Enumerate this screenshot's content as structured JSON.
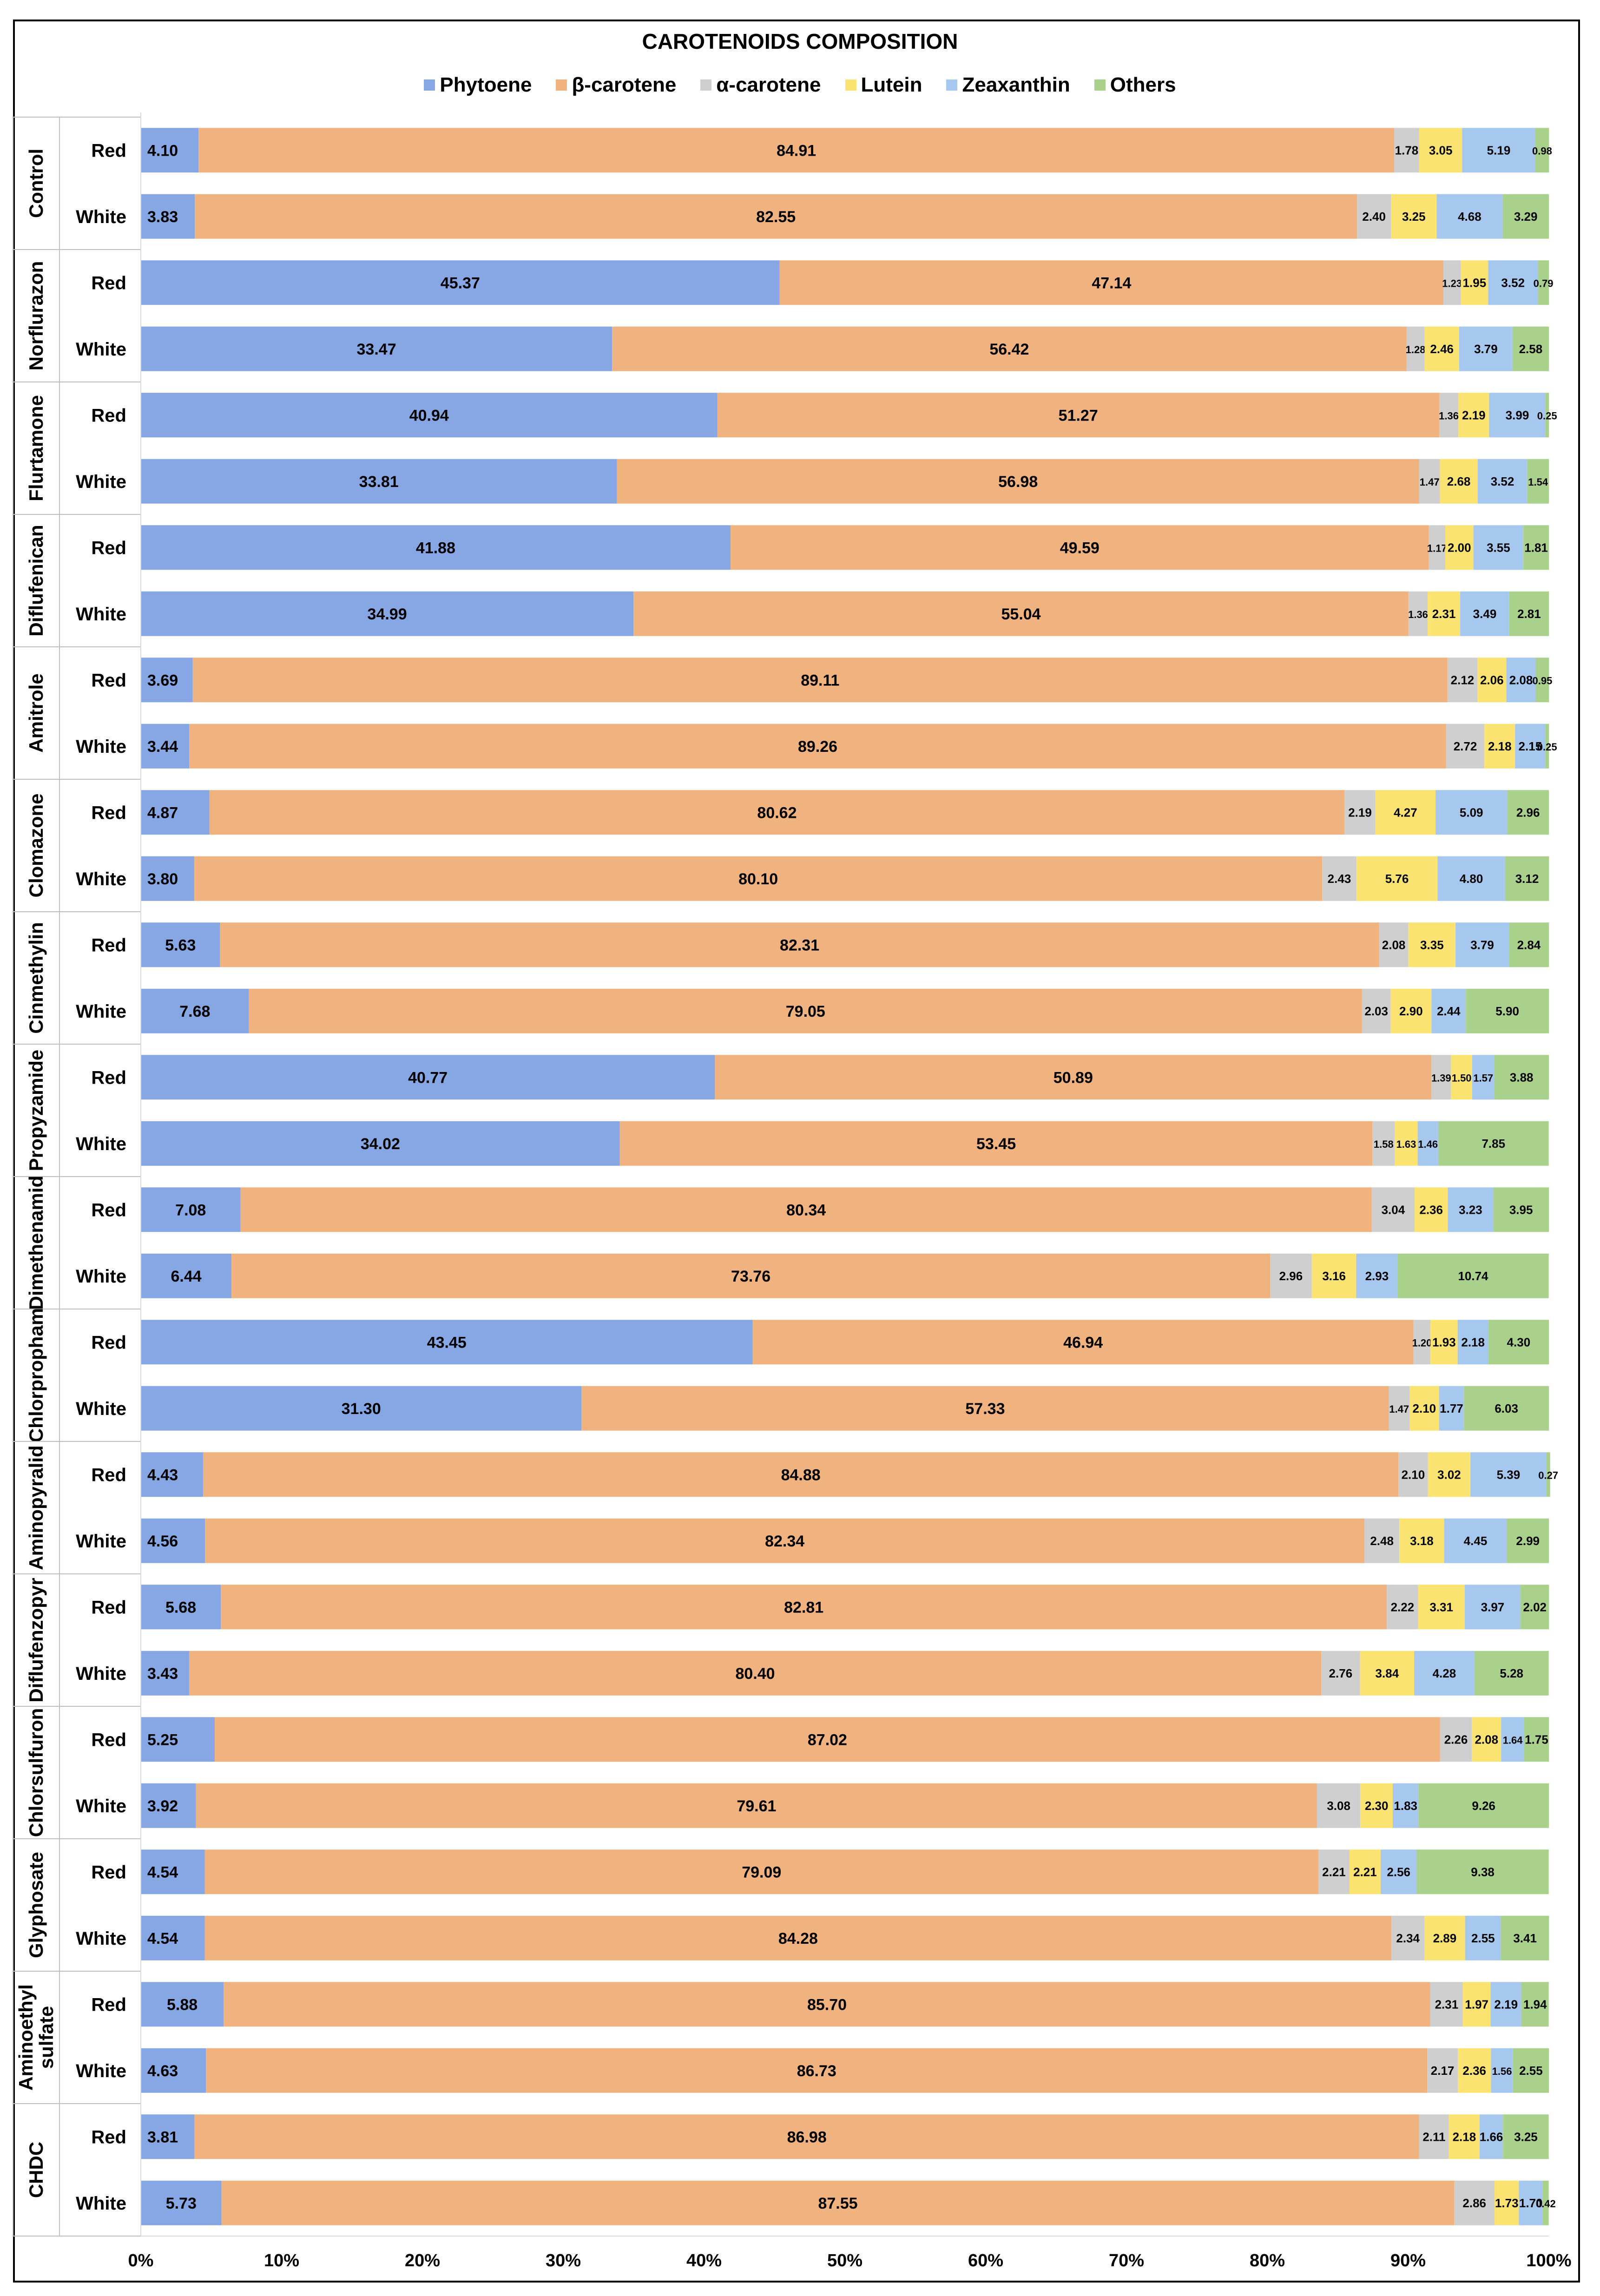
{
  "chart_data": {
    "type": "bar",
    "orientation": "horizontal",
    "stacked": "percent",
    "title": "CAROTENOIDS COMPOSITION",
    "legend": "top",
    "xlim": [
      0,
      100
    ],
    "x_ticks": [
      "0%",
      "10%",
      "20%",
      "30%",
      "40%",
      "50%",
      "60%",
      "70%",
      "80%",
      "90%",
      "100%"
    ],
    "series_names": [
      "Phytoene",
      "β-carotene",
      "α-carotene",
      "Lutein",
      "Zeaxanthin",
      "Others"
    ],
    "series_colors": [
      "#86a7e4",
      "#f0b27e",
      "#cfcfcf",
      "#fbe372",
      "#a6c8ee",
      "#a9d18b"
    ],
    "groups": [
      {
        "name": "Control",
        "rows": [
          {
            "label": "Red",
            "values": [
              "4.10",
              "84.91",
              "1.78",
              "3.05",
              "5.19",
              "0.98"
            ]
          },
          {
            "label": "White",
            "values": [
              "3.83",
              "82.55",
              "2.40",
              "3.25",
              "4.68",
              "3.29"
            ]
          }
        ]
      },
      {
        "name": "Norflurazon",
        "rows": [
          {
            "label": "Red",
            "values": [
              "45.37",
              "47.14",
              "1.23",
              "1.95",
              "3.52",
              "0.79"
            ]
          },
          {
            "label": "White",
            "values": [
              "33.47",
              "56.42",
              "1.28",
              "2.46",
              "3.79",
              "2.58"
            ]
          }
        ]
      },
      {
        "name": "Flurtamone",
        "rows": [
          {
            "label": "Red",
            "values": [
              "40.94",
              "51.27",
              "1.36",
              "2.19",
              "3.99",
              "0.25"
            ]
          },
          {
            "label": "White",
            "values": [
              "33.81",
              "56.98",
              "1.47",
              "2.68",
              "3.52",
              "1.54"
            ]
          }
        ]
      },
      {
        "name": "Diflufenican",
        "rows": [
          {
            "label": "Red",
            "values": [
              "41.88",
              "49.59",
              "1.17",
              "2.00",
              "3.55",
              "1.81"
            ]
          },
          {
            "label": "White",
            "values": [
              "34.99",
              "55.04",
              "1.36",
              "2.31",
              "3.49",
              "2.81"
            ]
          }
        ]
      },
      {
        "name": "Amitrole",
        "rows": [
          {
            "label": "Red",
            "values": [
              "3.69",
              "89.11",
              "2.12",
              "2.06",
              "2.08",
              "0.95"
            ]
          },
          {
            "label": "White",
            "values": [
              "3.44",
              "89.26",
              "2.72",
              "2.18",
              "2.15",
              "0.25"
            ]
          }
        ]
      },
      {
        "name": "Clomazone",
        "rows": [
          {
            "label": "Red",
            "values": [
              "4.87",
              "80.62",
              "2.19",
              "4.27",
              "5.09",
              "2.96"
            ]
          },
          {
            "label": "White",
            "values": [
              "3.80",
              "80.10",
              "2.43",
              "5.76",
              "4.80",
              "3.12"
            ]
          }
        ]
      },
      {
        "name": "Cinmethylin",
        "rows": [
          {
            "label": "Red",
            "values": [
              "5.63",
              "82.31",
              "2.08",
              "3.35",
              "3.79",
              "2.84"
            ]
          },
          {
            "label": "White",
            "values": [
              "7.68",
              "79.05",
              "2.03",
              "2.90",
              "2.44",
              "5.90"
            ]
          }
        ]
      },
      {
        "name": "Propyzamide",
        "rows": [
          {
            "label": "Red",
            "values": [
              "40.77",
              "50.89",
              "1.39",
              "1.50",
              "1.57",
              "3.88"
            ]
          },
          {
            "label": "White",
            "values": [
              "34.02",
              "53.45",
              "1.58",
              "1.63",
              "1.46",
              "7.85"
            ]
          }
        ]
      },
      {
        "name": "Dimethenamid",
        "rows": [
          {
            "label": "Red",
            "values": [
              "7.08",
              "80.34",
              "3.04",
              "2.36",
              "3.23",
              "3.95"
            ]
          },
          {
            "label": "White",
            "values": [
              "6.44",
              "73.76",
              "2.96",
              "3.16",
              "2.93",
              "10.74"
            ]
          }
        ]
      },
      {
        "name": "Chlorpropham",
        "rows": [
          {
            "label": "Red",
            "values": [
              "43.45",
              "46.94",
              "1.20",
              "1.93",
              "2.18",
              "4.30"
            ]
          },
          {
            "label": "White",
            "values": [
              "31.30",
              "57.33",
              "1.47",
              "2.10",
              "1.77",
              "6.03"
            ]
          }
        ]
      },
      {
        "name": "Aminopyralid",
        "rows": [
          {
            "label": "Red",
            "values": [
              "4.43",
              "84.88",
              "2.10",
              "3.02",
              "5.39",
              "0.27"
            ]
          },
          {
            "label": "White",
            "values": [
              "4.56",
              "82.34",
              "2.48",
              "3.18",
              "4.45",
              "2.99"
            ]
          }
        ]
      },
      {
        "name": "Diflufenzopyr",
        "rows": [
          {
            "label": "Red",
            "values": [
              "5.68",
              "82.81",
              "2.22",
              "3.31",
              "3.97",
              "2.02"
            ]
          },
          {
            "label": "White",
            "values": [
              "3.43",
              "80.40",
              "2.76",
              "3.84",
              "4.28",
              "5.28"
            ]
          }
        ]
      },
      {
        "name": "Chlorsulfuron",
        "rows": [
          {
            "label": "Red",
            "values": [
              "5.25",
              "87.02",
              "2.26",
              "2.08",
              "1.64",
              "1.75"
            ]
          },
          {
            "label": "White",
            "values": [
              "3.92",
              "79.61",
              "3.08",
              "2.30",
              "1.83",
              "9.26"
            ]
          }
        ]
      },
      {
        "name": "Glyphosate",
        "rows": [
          {
            "label": "Red",
            "values": [
              "4.54",
              "79.09",
              "2.21",
              "2.21",
              "2.56",
              "9.38"
            ]
          },
          {
            "label": "White",
            "values": [
              "4.54",
              "84.28",
              "2.34",
              "2.89",
              "2.55",
              "3.41"
            ]
          }
        ]
      },
      {
        "name": "Aminoethyl sulfate",
        "rows": [
          {
            "label": "Red",
            "values": [
              "5.88",
              "85.70",
              "2.31",
              "1.97",
              "2.19",
              "1.94"
            ]
          },
          {
            "label": "White",
            "values": [
              "4.63",
              "86.73",
              "2.17",
              "2.36",
              "1.56",
              "2.55"
            ]
          }
        ]
      },
      {
        "name": "CHDC",
        "rows": [
          {
            "label": "Red",
            "values": [
              "3.81",
              "86.98",
              "2.11",
              "2.18",
              "1.66",
              "3.25"
            ]
          },
          {
            "label": "White",
            "values": [
              "5.73",
              "87.55",
              "2.86",
              "1.73",
              "1.70",
              "0.42"
            ]
          }
        ]
      }
    ]
  }
}
